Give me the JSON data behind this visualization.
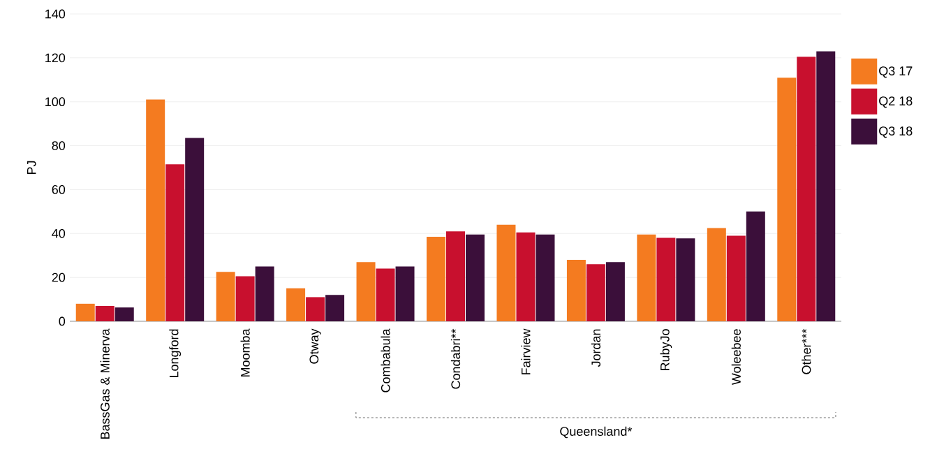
{
  "chart_data": {
    "type": "bar",
    "ylabel": "PJ",
    "categories": [
      "BassGas & Minerva",
      "Longford",
      "Moomba",
      "Otway",
      "Combabula",
      "Condabri**",
      "Fairview",
      "Jordan",
      "RubyJo",
      "Woleebee",
      "Other***"
    ],
    "series": [
      {
        "name": "Q3 17",
        "color": "#f47b20",
        "values": [
          8,
          101,
          22.5,
          15,
          27,
          38.5,
          44,
          28,
          39.5,
          42.5,
          111
        ]
      },
      {
        "name": "Q2 18",
        "color": "#c8102e",
        "values": [
          7,
          71.5,
          20.5,
          11,
          24,
          41,
          40.5,
          26,
          38,
          39,
          120.5
        ]
      },
      {
        "name": "Q3 18",
        "color": "#3b0f3a",
        "values": [
          6.3,
          83.5,
          25,
          12,
          25,
          39.5,
          39.5,
          27,
          37.8,
          50,
          123
        ]
      }
    ],
    "ylim": [
      0,
      140
    ],
    "yticks": [
      0,
      20,
      40,
      60,
      80,
      100,
      120,
      140
    ],
    "grid": "y",
    "legend": "right",
    "annotations": [
      "Queensland*"
    ]
  }
}
